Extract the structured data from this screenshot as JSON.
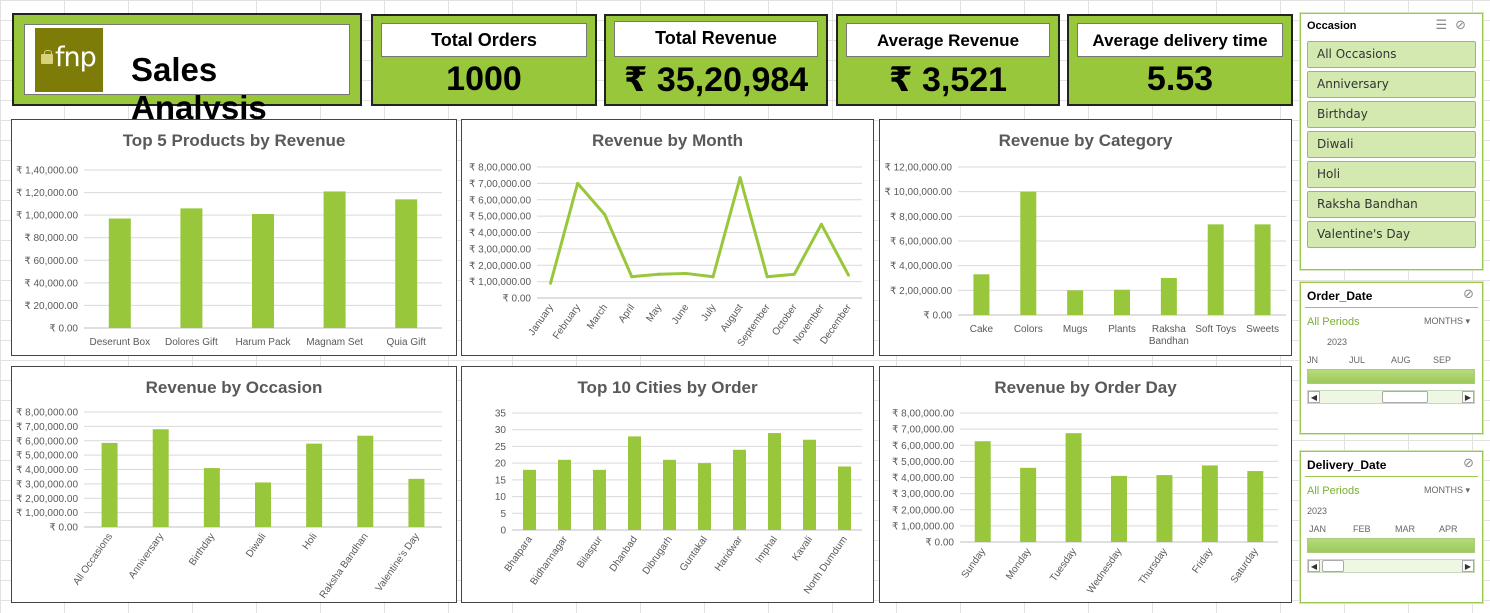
{
  "header": {
    "logo_text": "fnp",
    "title": "Sales Analysis"
  },
  "kpis": [
    {
      "label": "Total Orders",
      "value": "1000"
    },
    {
      "label": "Total Revenue",
      "value": "₹ 35,20,984"
    },
    {
      "label": "Average Revenue",
      "value": "₹ 3,521"
    },
    {
      "label": "Average delivery time",
      "value": "5.53"
    }
  ],
  "colors": {
    "accent": "#98c73c",
    "bar": "#98c73c",
    "grid": "#d9d9d9"
  },
  "occasion_slicer": {
    "title": "Occasion",
    "items": [
      "All Occasions",
      "Anniversary",
      "Birthday",
      "Diwali",
      "Holi",
      "Raksha Bandhan",
      "Valentine's Day"
    ]
  },
  "order_timeline": {
    "title": "Order_Date",
    "periods": "All Periods",
    "level": "MONTHS",
    "year": "2023",
    "months": [
      "JN",
      "JUL",
      "AUG",
      "SEP"
    ]
  },
  "delivery_timeline": {
    "title": "Delivery_Date",
    "periods": "All Periods",
    "level": "MONTHS",
    "year": "2023",
    "months": [
      "JAN",
      "FEB",
      "MAR",
      "APR"
    ]
  },
  "chart_data": [
    {
      "id": "products",
      "type": "bar",
      "title": "Top 5 Products by Revenue",
      "categories": [
        "Deserunt Box",
        "Dolores Gift",
        "Harum Pack",
        "Magnam Set",
        "Quia Gift"
      ],
      "values": [
        97000,
        106000,
        101000,
        121000,
        114000
      ],
      "ylim": [
        0,
        140000
      ],
      "yticks": [
        0,
        20000,
        40000,
        60000,
        80000,
        100000,
        120000,
        140000
      ],
      "ytick_labels": [
        "₹ 0.00",
        "₹ 20,000.00",
        "₹ 40,000.00",
        "₹ 60,000.00",
        "₹ 80,000.00",
        "₹ 1,00,000.00",
        "₹ 1,20,000.00",
        "₹ 1,40,000.00"
      ],
      "grid": true
    },
    {
      "id": "month",
      "type": "line",
      "title": "Revenue by Month",
      "categories": [
        "January",
        "February",
        "March",
        "April",
        "May",
        "June",
        "July",
        "August",
        "September",
        "October",
        "November",
        "December"
      ],
      "values": [
        90000,
        700000,
        510000,
        130000,
        145000,
        150000,
        130000,
        735000,
        130000,
        145000,
        450000,
        140000
      ],
      "ylim": [
        0,
        800000
      ],
      "yticks": [
        0,
        100000,
        200000,
        300000,
        400000,
        500000,
        600000,
        700000,
        800000
      ],
      "ytick_labels": [
        "₹ 0.00",
        "₹ 1,00,000.00",
        "₹ 2,00,000.00",
        "₹ 3,00,000.00",
        "₹ 4,00,000.00",
        "₹ 5,00,000.00",
        "₹ 6,00,000.00",
        "₹ 7,00,000.00",
        "₹ 8,00,000.00"
      ],
      "grid": true
    },
    {
      "id": "category",
      "type": "bar",
      "title": "Revenue by Category",
      "categories": [
        "Cake",
        "Colors",
        "Mugs",
        "Plants",
        "Raksha Bandhan",
        "Soft Toys",
        "Sweets"
      ],
      "values": [
        330000,
        1000000,
        200000,
        205000,
        300000,
        735000,
        735000
      ],
      "ylim": [
        0,
        1200000
      ],
      "yticks": [
        0,
        200000,
        400000,
        600000,
        800000,
        1000000,
        1200000
      ],
      "ytick_labels": [
        "₹ 0.00",
        "₹ 2,00,000.00",
        "₹ 4,00,000.00",
        "₹ 6,00,000.00",
        "₹ 8,00,000.00",
        "₹ 10,00,000.00",
        "₹ 12,00,000.00"
      ],
      "grid": true
    },
    {
      "id": "occasion",
      "type": "bar",
      "title": "Revenue by Occasion",
      "categories": [
        "All Occasions",
        "Anniversary",
        "Birthday",
        "Diwali",
        "Holi",
        "Raksha Bandhan",
        "Valentine's Day"
      ],
      "values": [
        585000,
        680000,
        410000,
        310000,
        580000,
        635000,
        335000
      ],
      "ylim": [
        0,
        800000
      ],
      "yticks": [
        0,
        100000,
        200000,
        300000,
        400000,
        500000,
        600000,
        700000,
        800000
      ],
      "ytick_labels": [
        "₹ 0.00",
        "₹ 1,00,000.00",
        "₹ 2,00,000.00",
        "₹ 3,00,000.00",
        "₹ 4,00,000.00",
        "₹ 5,00,000.00",
        "₹ 6,00,000.00",
        "₹ 7,00,000.00",
        "₹ 8,00,000.00"
      ],
      "grid": true
    },
    {
      "id": "cities",
      "type": "bar",
      "title": "Top 10 Cities by Order",
      "categories": [
        "Bhatpara",
        "Bidhannagar",
        "Bilaspur",
        "Dhanbad",
        "Dibrugarh",
        "Guntakal",
        "Haridwar",
        "Imphal",
        "Kavali",
        "North Dumdum"
      ],
      "values": [
        18,
        21,
        18,
        28,
        21,
        20,
        24,
        29,
        27,
        19
      ],
      "ylim": [
        0,
        35
      ],
      "yticks": [
        0,
        5,
        10,
        15,
        20,
        25,
        30,
        35
      ],
      "ytick_labels": [
        "0",
        "5",
        "10",
        "15",
        "20",
        "25",
        "30",
        "35"
      ],
      "grid": true
    },
    {
      "id": "day",
      "type": "bar",
      "title": "Revenue by Order Day",
      "categories": [
        "Sunday",
        "Monday",
        "Tuesday",
        "Wednesday",
        "Thursday",
        "Friday",
        "Saturday"
      ],
      "values": [
        625000,
        460000,
        675000,
        410000,
        415000,
        475000,
        440000
      ],
      "ylim": [
        0,
        800000
      ],
      "yticks": [
        0,
        100000,
        200000,
        300000,
        400000,
        500000,
        600000,
        700000,
        800000
      ],
      "ytick_labels": [
        "₹ 0.00",
        "₹ 1,00,000.00",
        "₹ 2,00,000.00",
        "₹ 3,00,000.00",
        "₹ 4,00,000.00",
        "₹ 5,00,000.00",
        "₹ 6,00,000.00",
        "₹ 7,00,000.00",
        "₹ 8,00,000.00"
      ],
      "grid": true
    }
  ]
}
